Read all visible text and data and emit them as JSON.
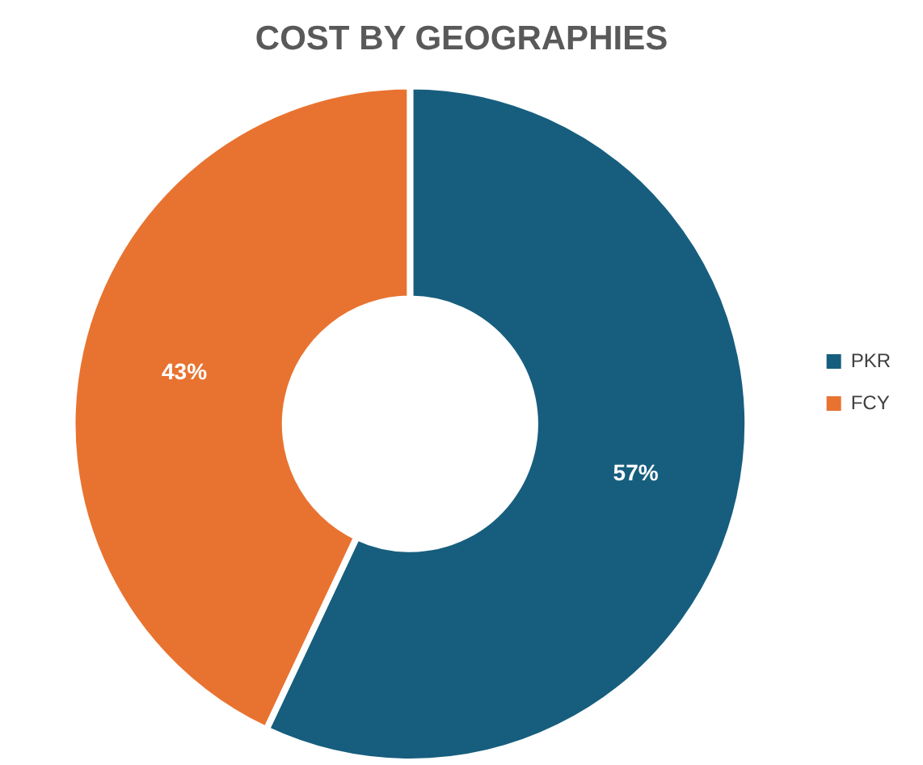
{
  "chart_data": {
    "type": "donut",
    "title": "COST BY GEOGRAPHIES",
    "categories": [
      "PKR",
      "FCY"
    ],
    "values": [
      57,
      43
    ],
    "colors": [
      "#175e7e",
      "#e87330"
    ],
    "legend": "right",
    "value_labels": [
      "57%",
      "43%"
    ]
  }
}
